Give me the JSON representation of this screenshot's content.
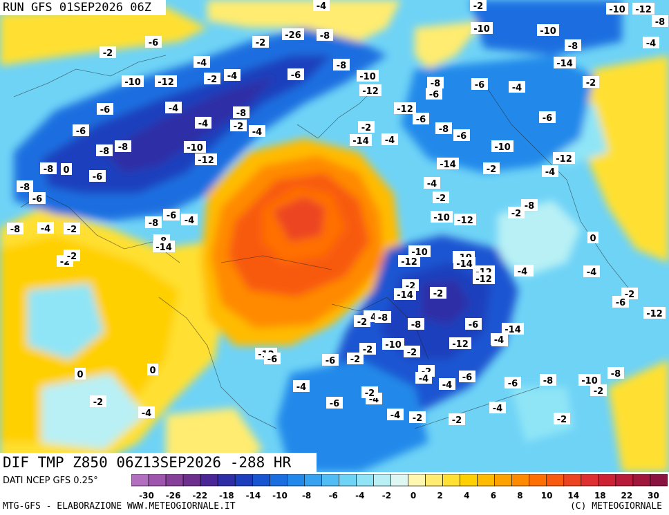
{
  "header": {
    "run": "RUN GFS 01SEP2026 06Z"
  },
  "title": "DIF TMP Z850 06Z13SEP2026 -288 HR",
  "footer": {
    "source": "DATI NCEP GFS 0.25°",
    "credit": "MTG-GFS - ELABORAZIONE WWW.METEOGIORNALE.IT",
    "copyright": "(C) METEOGIORNALE"
  },
  "scale": {
    "colors": [
      "#b36fbf",
      "#9d55ad",
      "#874099",
      "#6c2f8c",
      "#4a2696",
      "#2e2ea6",
      "#1e3fbd",
      "#1a55d1",
      "#1a6ee0",
      "#2289ea",
      "#37a3f0",
      "#52bdf4",
      "#6fd3f6",
      "#8fe5f6",
      "#b8f0f5",
      "#dff7f2",
      "#fff6b0",
      "#ffec70",
      "#ffe033",
      "#ffd000",
      "#ffbb00",
      "#ffa200",
      "#ff8a00",
      "#ff7000",
      "#f85a10",
      "#ec4420",
      "#de3030",
      "#cc2233",
      "#b81a3a",
      "#a0173c",
      "#8a1440"
    ],
    "labels": [
      "-30",
      "-26",
      "-22",
      "-18",
      "-14",
      "-10",
      "-8",
      "-6",
      "-4",
      "-2",
      "0",
      "2",
      "4",
      "6",
      "8",
      "10",
      "14",
      "18",
      "22",
      "30"
    ]
  },
  "map_labels": [
    "-4",
    "-2",
    "-10",
    "-12",
    "-8",
    "-6",
    "-2",
    "-26",
    "-8",
    "-10",
    "-10",
    "-8",
    "-4",
    "-2",
    "-4",
    "-10",
    "-12",
    "-2",
    "-4",
    "-6",
    "-8",
    "-10",
    "-12",
    "-8",
    "-6",
    "-6",
    "-4",
    "-2",
    "-14",
    "-4",
    "-6",
    "-8",
    "-2",
    "-4",
    "-12",
    "-6",
    "-2",
    "-4",
    "-8",
    "-6",
    "-4",
    "-6",
    "-8",
    "-8",
    "-10",
    "-12",
    "-14",
    "-10",
    "-6",
    "-12",
    "-14",
    "-2",
    "-4",
    "-8",
    "0",
    "-6",
    "-8",
    "-6",
    "-4",
    "-2",
    "-8",
    "-2",
    "-12",
    "-10",
    "-8",
    "-4",
    "-2",
    "-6",
    "-4",
    "-8",
    "0",
    "-2",
    "-2",
    "-6",
    "-4",
    "-8",
    "-14",
    "-10",
    "-12",
    "-10",
    "-14",
    "-12",
    "-12",
    "-2",
    "-14",
    "-2",
    "-4",
    "-2",
    "-6",
    "-12",
    "-14",
    "-4",
    "-12",
    "-8",
    "-6",
    "-4",
    "-2",
    "-10",
    "-4",
    "-8",
    "-2",
    "-2",
    "-2",
    "-6",
    "-12",
    "-6",
    "-2",
    "-4",
    "-4",
    "-6",
    "-6",
    "-8",
    "-10",
    "-8",
    "-4",
    "-2",
    "-6",
    "-4",
    "-2",
    "-4",
    "-2",
    "-2",
    "-4",
    "-2",
    "-2",
    "-4",
    "0",
    "0"
  ]
}
